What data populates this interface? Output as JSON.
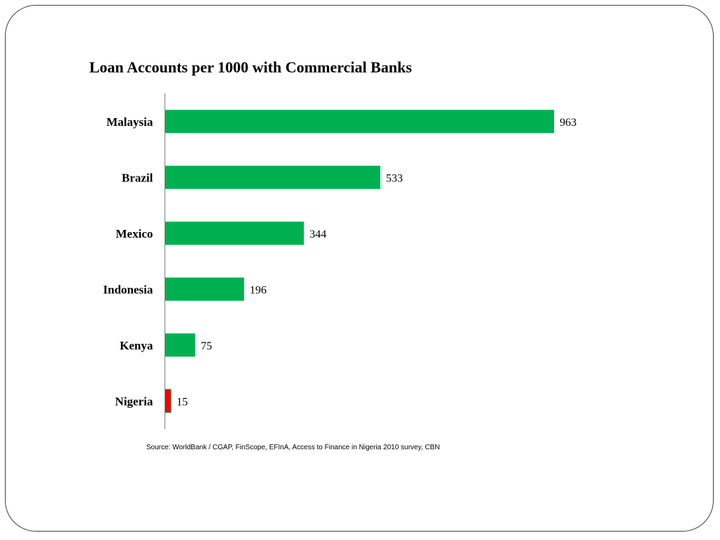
{
  "chart_data": {
    "type": "bar",
    "orientation": "horizontal",
    "title": "Loan Accounts per 1000 with Commercial Banks",
    "xlabel": "",
    "ylabel": "",
    "categories": [
      "Malaysia",
      "Brazil",
      "Mexico",
      "Indonesia",
      "Kenya",
      "Nigeria"
    ],
    "values": [
      963,
      533,
      344,
      196,
      75,
      15
    ],
    "bar_colors": [
      "#00b050",
      "#00b050",
      "#00b050",
      "#00b050",
      "#00b050",
      "#ff0000"
    ],
    "data_labels": [
      "963",
      "533",
      "344",
      "196",
      "75",
      "15"
    ],
    "xlim": [
      0,
      963
    ],
    "grid": false,
    "legend": "none"
  },
  "source": "Source: WorldBank / CGAP, FinScope, EFInA, Access to Finance in Nigeria 2010 survey, CBN"
}
